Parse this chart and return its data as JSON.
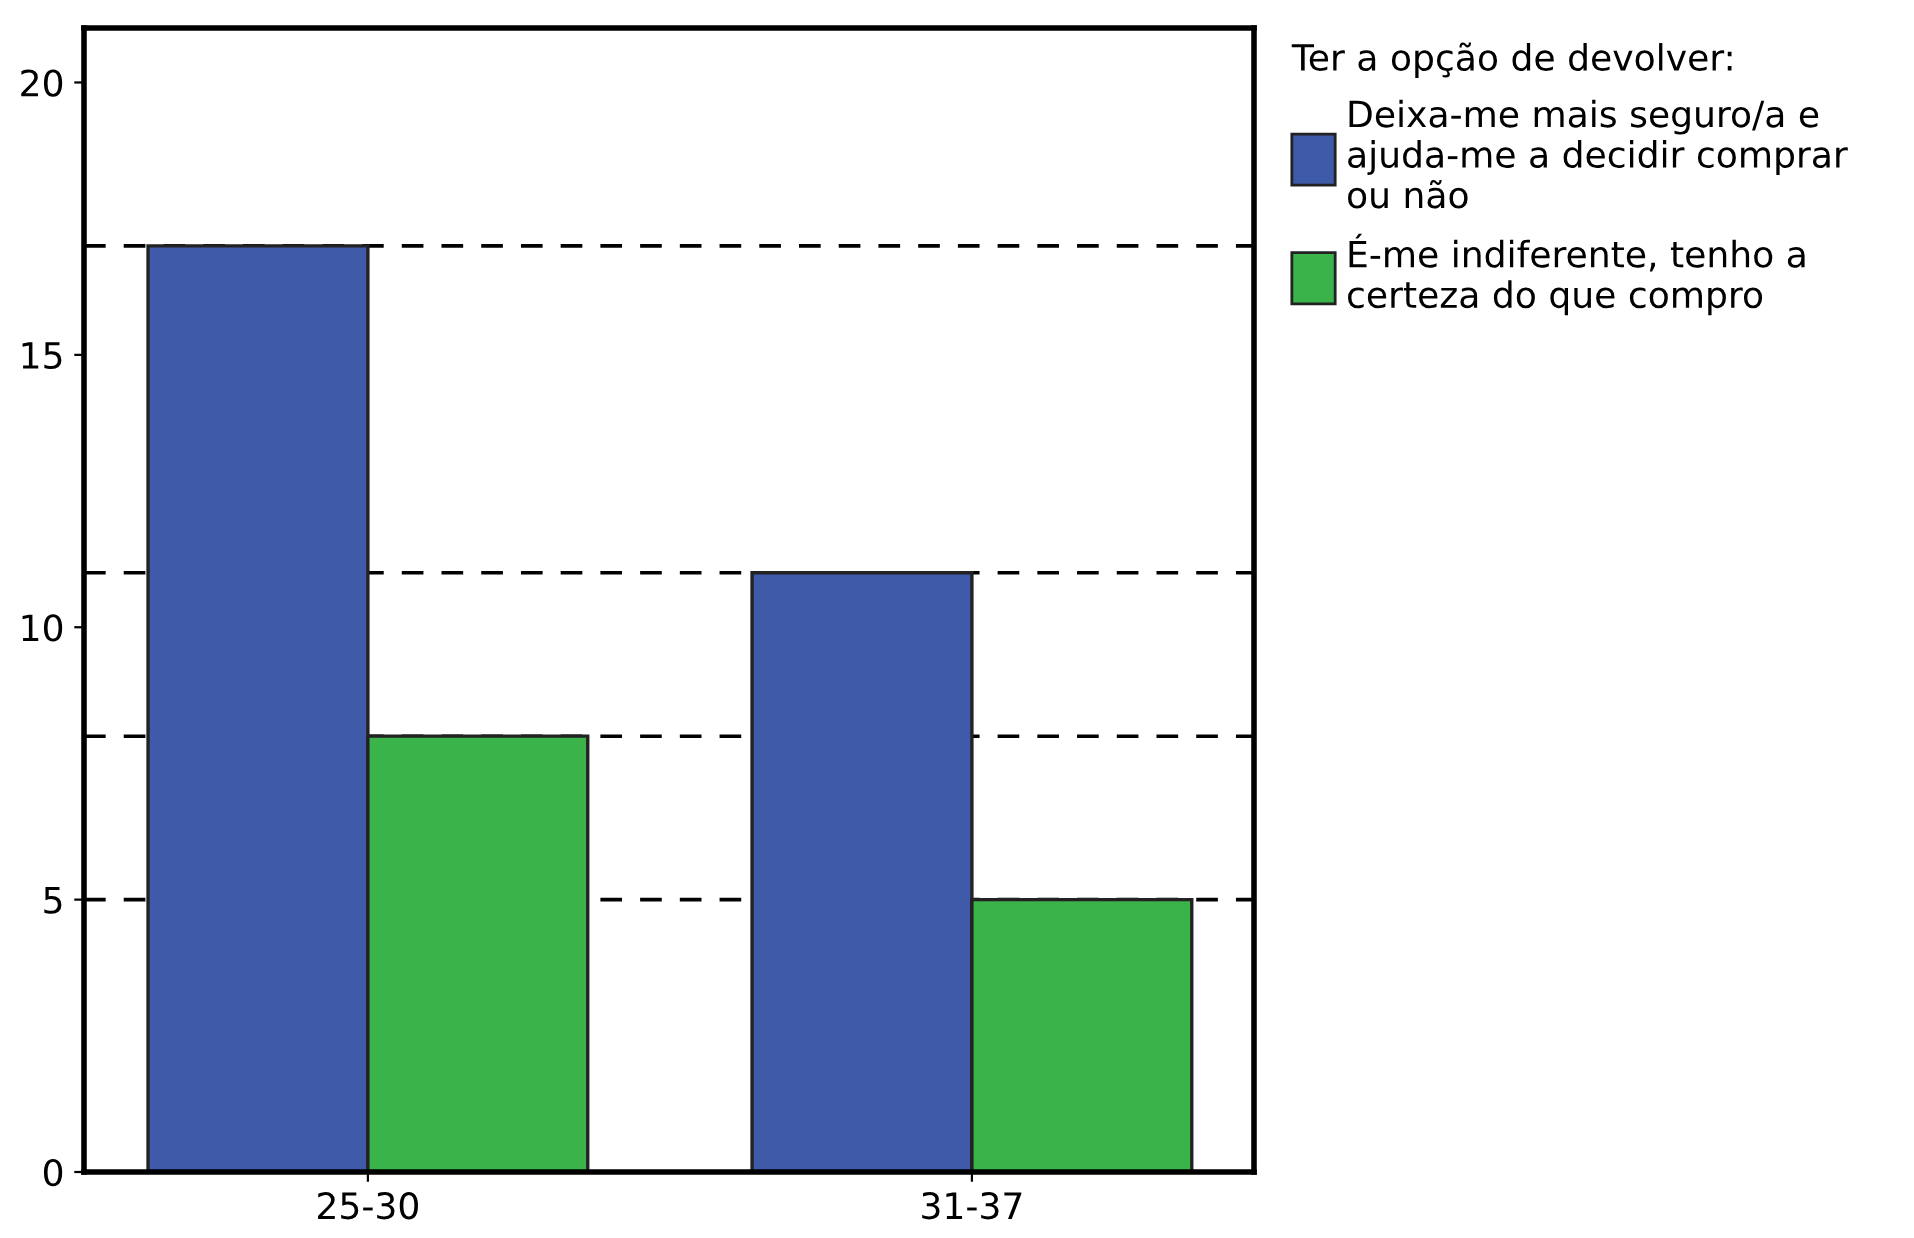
{
  "chart_data": {
    "type": "bar",
    "categories": [
      "25-30",
      "31-37"
    ],
    "series": [
      {
        "name": "Deixa-me mais seguro/a e\najuda-me a decidir comprar\nou não",
        "color": "#3e5aa8",
        "values": [
          17,
          11
        ]
      },
      {
        "name": "É-me indiferente, tenho a\ncerteza do que compro",
        "color": "#3bb34b",
        "values": [
          8,
          5
        ]
      }
    ],
    "legend_title": "Ter a opção de devolver:",
    "legend": "right",
    "ylim": [
      0,
      21
    ],
    "yticks": [
      0,
      5,
      10,
      15,
      20
    ],
    "grid": false,
    "ref_lines": [
      {
        "axis": "y",
        "value": 17,
        "color": "#000000",
        "line_style": "dashed"
      },
      {
        "axis": "y",
        "value": 11,
        "color": "#000000",
        "line_style": "dashed"
      },
      {
        "axis": "y",
        "value": 8,
        "color": "#000000",
        "line_style": "dashed"
      },
      {
        "axis": "y",
        "value": 5,
        "color": "#000000",
        "line_style": "dashed"
      }
    ]
  }
}
